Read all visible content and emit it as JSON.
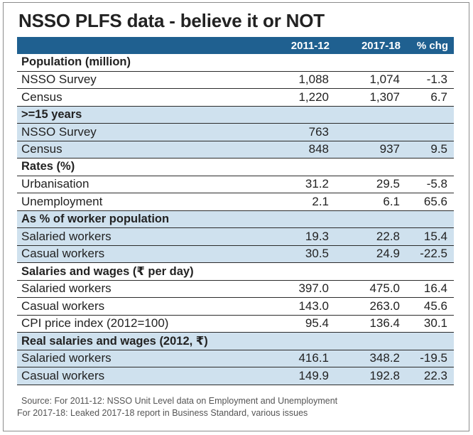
{
  "title": "NSSO PLFS data - believe it or NOT",
  "columns": [
    "",
    "2011-12",
    "2017-18",
    "% chg"
  ],
  "rows": [
    {
      "type": "section",
      "shade": false,
      "label": "Population (million)",
      "a": "",
      "b": "",
      "c": ""
    },
    {
      "type": "data",
      "shade": false,
      "label": "NSSO Survey",
      "a": "1,088",
      "b": "1,074",
      "c": "-1.3"
    },
    {
      "type": "data",
      "shade": false,
      "label": "Census",
      "a": "1,220",
      "b": "1,307",
      "c": "6.7"
    },
    {
      "type": "section",
      "shade": true,
      "label": ">=15 years",
      "a": "",
      "b": "",
      "c": ""
    },
    {
      "type": "data",
      "shade": true,
      "label": "NSSO Survey",
      "a": "763",
      "b": "",
      "c": ""
    },
    {
      "type": "data",
      "shade": true,
      "label": "Census",
      "a": "848",
      "b": "937",
      "c": "9.5"
    },
    {
      "type": "section",
      "shade": false,
      "label": "Rates (%)",
      "a": "",
      "b": "",
      "c": ""
    },
    {
      "type": "data",
      "shade": false,
      "label": "Urbanisation",
      "a": "31.2",
      "b": "29.5",
      "c": "-5.8"
    },
    {
      "type": "data",
      "shade": false,
      "label": "Unemployment",
      "a": "2.1",
      "b": "6.1",
      "c": "65.6"
    },
    {
      "type": "section",
      "shade": true,
      "label": "As % of worker population",
      "a": "",
      "b": "",
      "c": ""
    },
    {
      "type": "data",
      "shade": true,
      "label": "Salaried workers",
      "a": "19.3",
      "b": "22.8",
      "c": "15.4"
    },
    {
      "type": "data",
      "shade": true,
      "label": "Casual workers",
      "a": "30.5",
      "b": "24.9",
      "c": "-22.5"
    },
    {
      "type": "section",
      "shade": false,
      "label": "Salaries and wages (₹ per day)",
      "a": "",
      "b": "",
      "c": ""
    },
    {
      "type": "data",
      "shade": false,
      "label": "Salaried workers",
      "a": "397.0",
      "b": "475.0",
      "c": "16.4"
    },
    {
      "type": "data",
      "shade": false,
      "label": "Casual workers",
      "a": "143.0",
      "b": "263.0",
      "c": "45.6"
    },
    {
      "type": "data",
      "shade": false,
      "label": "CPI price index (2012=100)",
      "a": "95.4",
      "b": "136.4",
      "c": "30.1"
    },
    {
      "type": "section",
      "shade": true,
      "label": "Real salaries and wages (2012, ₹)",
      "a": "",
      "b": "",
      "c": ""
    },
    {
      "type": "data",
      "shade": true,
      "label": "Salaried workers",
      "a": "416.1",
      "b": "348.2",
      "c": "-19.5"
    },
    {
      "type": "data",
      "shade": true,
      "label": "Casual workers",
      "a": "149.9",
      "b": "192.8",
      "c": "22.3"
    }
  ],
  "source": {
    "line1": "Source: For 2011-12: NSSO Unit Level data on Employment and Unemployment",
    "line2": "For 2017-18: Leaked 2017-18 report in Business Standard, various issues"
  },
  "colors": {
    "header_bg": "#1f6090",
    "shade_bg": "#cfe1ee"
  }
}
